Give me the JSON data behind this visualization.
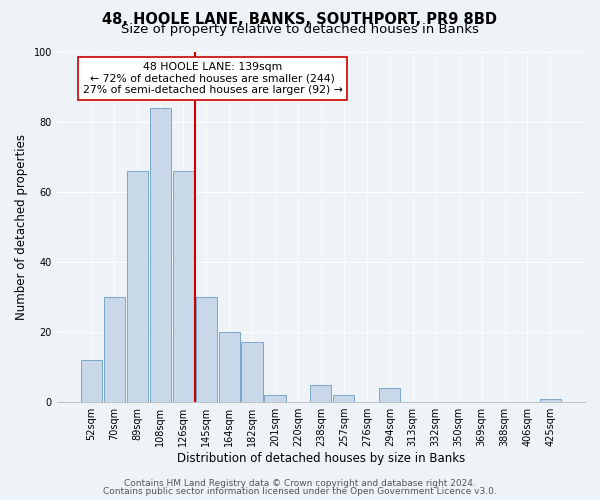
{
  "title": "48, HOOLE LANE, BANKS, SOUTHPORT, PR9 8BD",
  "subtitle": "Size of property relative to detached houses in Banks",
  "xlabel": "Distribution of detached houses by size in Banks",
  "ylabel": "Number of detached properties",
  "bar_labels": [
    "52sqm",
    "70sqm",
    "89sqm",
    "108sqm",
    "126sqm",
    "145sqm",
    "164sqm",
    "182sqm",
    "201sqm",
    "220sqm",
    "238sqm",
    "257sqm",
    "276sqm",
    "294sqm",
    "313sqm",
    "332sqm",
    "350sqm",
    "369sqm",
    "388sqm",
    "406sqm",
    "425sqm"
  ],
  "bar_heights": [
    12,
    30,
    66,
    84,
    66,
    30,
    20,
    17,
    2,
    0,
    5,
    2,
    0,
    4,
    0,
    0,
    0,
    0,
    0,
    0,
    1
  ],
  "bar_color": "#c8d8e8",
  "bar_edge_color": "#7aa8c8",
  "vline_color": "#cc0000",
  "annotation_line1": "48 HOOLE LANE: 139sqm",
  "annotation_line2": "← 72% of detached houses are smaller (244)",
  "annotation_line3": "27% of semi-detached houses are larger (92) →",
  "annotation_box_color": "#ffffff",
  "annotation_box_edge": "#cc0000",
  "ylim": [
    0,
    100
  ],
  "yticks": [
    0,
    20,
    40,
    60,
    80,
    100
  ],
  "footer1": "Contains HM Land Registry data © Crown copyright and database right 2024.",
  "footer2": "Contains public sector information licensed under the Open Government Licence v3.0.",
  "background_color": "#eef3f8",
  "plot_background": "#eef3f8",
  "title_fontsize": 10.5,
  "subtitle_fontsize": 9.5,
  "axis_label_fontsize": 8.5,
  "tick_fontsize": 7,
  "annotation_fontsize": 7.8,
  "footer_fontsize": 6.5,
  "grid_color": "#ffffff"
}
